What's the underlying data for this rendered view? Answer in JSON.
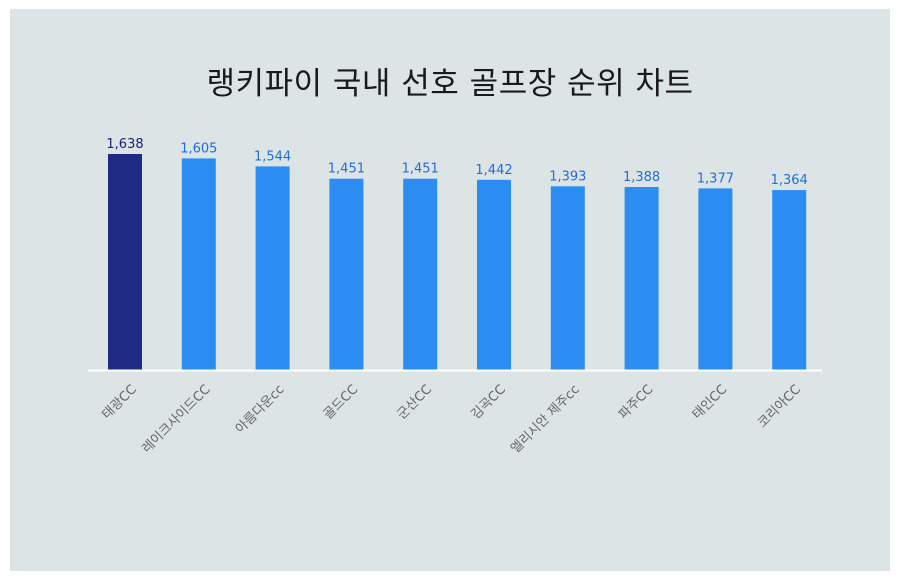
{
  "chart_data": {
    "type": "bar",
    "title": "랭키파이 국내 선호 골프장 순위 차트",
    "categories": [
      "태광CC",
      "레이크사이드CC",
      "아름다운cc",
      "골드CC",
      "군산CC",
      "김곡CC",
      "엘리시안 제주cc",
      "파주CC",
      "태인CC",
      "코리아CC"
    ],
    "values": [
      1638,
      1605,
      1544,
      1451,
      1451,
      1442,
      1393,
      1388,
      1377,
      1364
    ],
    "value_labels": [
      "1,638",
      "1,605",
      "1,544",
      "1,451",
      "1,451",
      "1,442",
      "1,393",
      "1,388",
      "1,377",
      "1,364"
    ],
    "ylim": [
      0,
      1638
    ],
    "grid": false,
    "legend": "none",
    "colors": {
      "highlight": "#202b86",
      "bar": "#2b8cf2",
      "highlight_label": "#1c2470",
      "label": "#1f6fd6",
      "tick_label": "#666666",
      "baseline": "#ffffff",
      "background": "#dce4e6"
    }
  }
}
